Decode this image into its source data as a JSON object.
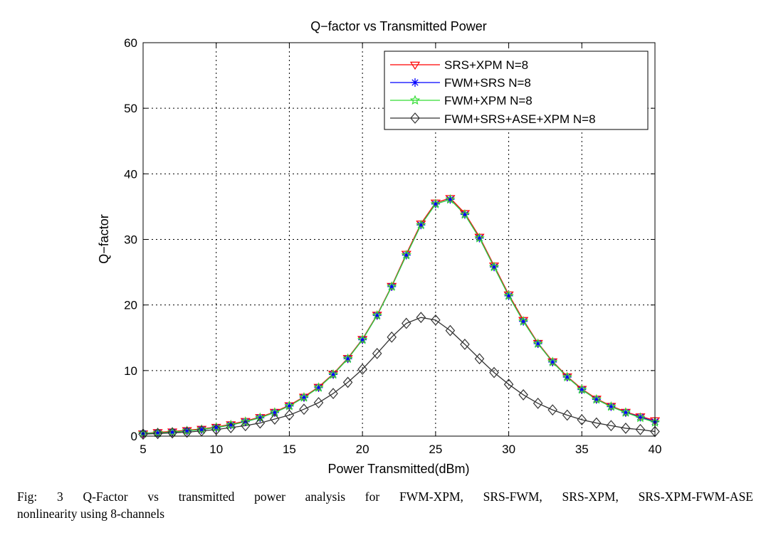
{
  "chart_data": {
    "type": "line",
    "title": "Q−factor vs Transmitted Power",
    "xlabel": "Power Transmitted(dBm)",
    "ylabel": "Q−factor",
    "xlim": [
      5,
      40
    ],
    "ylim": [
      0,
      60
    ],
    "xticks": [
      "5",
      "10",
      "15",
      "20",
      "25",
      "30",
      "35",
      "40"
    ],
    "yticks": [
      "0",
      "10",
      "20",
      "30",
      "40",
      "50",
      "60"
    ],
    "grid": true,
    "legend_position": "top-right",
    "x": [
      5,
      6,
      7,
      8,
      9,
      10,
      11,
      12,
      13,
      14,
      15,
      16,
      17,
      18,
      19,
      20,
      21,
      22,
      23,
      24,
      25,
      26,
      27,
      28,
      29,
      30,
      31,
      32,
      33,
      34,
      35,
      36,
      37,
      38,
      39,
      40
    ],
    "series": [
      {
        "name": "SRS+XPM N=8",
        "color": "#ff0000",
        "marker": "triangle-down",
        "values": [
          0.4,
          0.6,
          0.7,
          0.9,
          1.1,
          1.4,
          1.8,
          2.3,
          2.9,
          3.7,
          4.7,
          6.0,
          7.5,
          9.5,
          11.9,
          14.8,
          18.5,
          22.9,
          27.8,
          32.4,
          35.6,
          36.3,
          34.0,
          30.4,
          26.0,
          21.6,
          17.7,
          14.2,
          11.4,
          9.1,
          7.2,
          5.7,
          4.6,
          3.7,
          3.0,
          2.4
        ]
      },
      {
        "name": "FWM+SRS N=8",
        "color": "#0000ff",
        "marker": "asterisk",
        "values": [
          0.4,
          0.5,
          0.6,
          0.8,
          1.0,
          1.3,
          1.7,
          2.2,
          2.8,
          3.6,
          4.6,
          5.9,
          7.4,
          9.4,
          11.8,
          14.7,
          18.4,
          22.8,
          27.6,
          32.2,
          35.4,
          36.1,
          33.8,
          30.2,
          25.8,
          21.4,
          17.5,
          14.1,
          11.3,
          9.0,
          7.1,
          5.6,
          4.5,
          3.6,
          2.9,
          2.2
        ]
      },
      {
        "name": "FWM+XPM N=8",
        "color": "#33dd33",
        "marker": "star",
        "values": [
          0.4,
          0.5,
          0.6,
          0.8,
          1.0,
          1.3,
          1.7,
          2.2,
          2.8,
          3.6,
          4.6,
          5.9,
          7.4,
          9.4,
          11.8,
          14.7,
          18.4,
          22.8,
          27.6,
          32.2,
          35.4,
          36.1,
          33.8,
          30.2,
          25.8,
          21.4,
          17.5,
          14.1,
          11.3,
          9.0,
          7.1,
          5.6,
          4.5,
          3.6,
          2.8,
          2.1
        ]
      },
      {
        "name": "FWM+SRS+ASE+XPM N=8",
        "color": "#333333",
        "marker": "diamond",
        "values": [
          0.3,
          0.4,
          0.5,
          0.6,
          0.8,
          1.0,
          1.3,
          1.6,
          2.0,
          2.6,
          3.2,
          4.1,
          5.1,
          6.5,
          8.2,
          10.2,
          12.6,
          15.1,
          17.2,
          18.1,
          17.7,
          16.1,
          14.0,
          11.8,
          9.7,
          7.9,
          6.3,
          5.0,
          4.0,
          3.2,
          2.5,
          2.0,
          1.6,
          1.2,
          1.0,
          0.7
        ]
      }
    ]
  },
  "caption": {
    "line1": "Fig: 3 Q-Factor vs transmitted power analysis for FWM-XPM, SRS-FWM, SRS-XPM, SRS-XPM-FWM-ASE",
    "line2": "nonlinearity using 8-channels"
  }
}
